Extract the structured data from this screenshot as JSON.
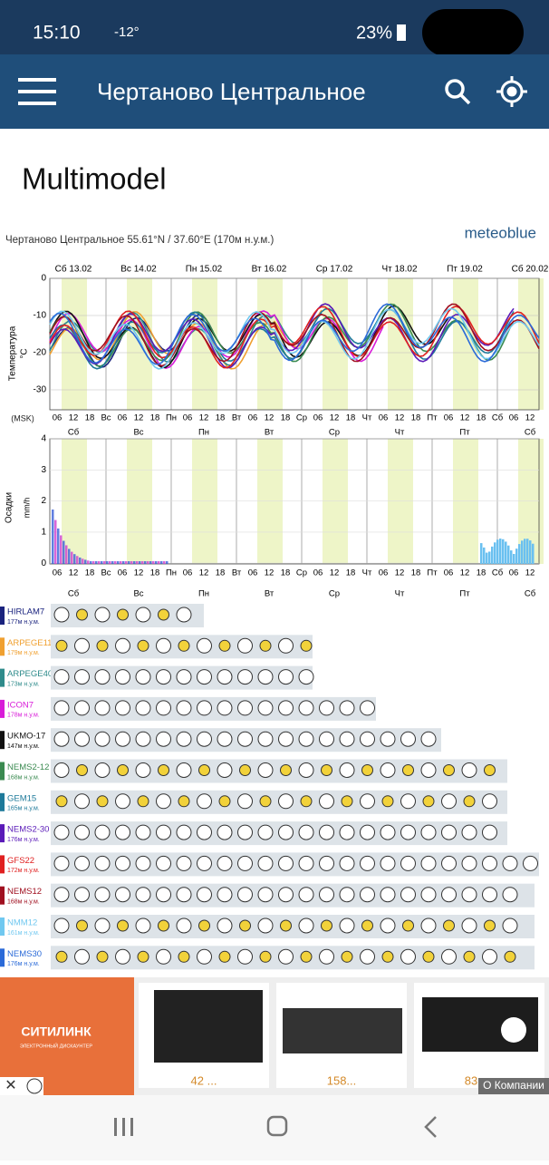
{
  "status_bar": {
    "time": "15:10",
    "temperature": "-12°",
    "battery": "23%"
  },
  "app_bar": {
    "title": "Чертаново Центральное"
  },
  "heading": "Multimodel",
  "meteogram": {
    "location": "Чертаново Центральное  55.61°N / 37.60°E (170м н.у.м.)",
    "brand": "meteoblue",
    "dates": [
      "Сб 13.02",
      "Вс 14.02",
      "Пн 15.02",
      "Вт 16.02",
      "Ср 17.02",
      "Чт 18.02",
      "Пт 19.02",
      "Сб 20.02"
    ],
    "temp_axis_label": "Температура",
    "temp_unit": "°C",
    "temp_ticks": [
      "0",
      "-10",
      "-20",
      "-30"
    ],
    "timezone": "(MSK)",
    "hour_labels": [
      "06",
      "12",
      "18",
      "Вс",
      "06",
      "12",
      "18",
      "Пн",
      "06",
      "12",
      "18",
      "Вт",
      "06",
      "12",
      "18",
      "Ср",
      "06",
      "12",
      "18",
      "Чт",
      "06",
      "12",
      "18",
      "Пт",
      "06",
      "12",
      "18",
      "Сб",
      "06",
      "12"
    ],
    "days": [
      "Сб",
      "Вс",
      "Пн",
      "Вт",
      "Ср",
      "Чт",
      "Пт",
      "Сб"
    ],
    "precip_axis_label": "Осадки",
    "precip_unit": "mm/h",
    "precip_ticks": [
      "4",
      "3",
      "2",
      "1",
      "0"
    ],
    "models": [
      {
        "name": "HIRLAM7",
        "elevation": "177м н.у.м.",
        "color": "#1a237e"
      },
      {
        "name": "ARPEGE11",
        "elevation": "179м н.у.м.",
        "color": "#f0a030"
      },
      {
        "name": "ARPEGE40",
        "elevation": "173м н.у.м.",
        "color": "#2e8b8b"
      },
      {
        "name": "ICON7",
        "elevation": "178м н.у.м.",
        "color": "#d81bd8"
      },
      {
        "name": "UKMO-17",
        "elevation": "147м н.у.м.",
        "color": "#111111"
      },
      {
        "name": "NEMS2-12",
        "elevation": "168м н.у.м.",
        "color": "#3a8a50"
      },
      {
        "name": "GEM15",
        "elevation": "165м н.у.м.",
        "color": "#1e7a9a"
      },
      {
        "name": "NEMS2-30",
        "elevation": "176м н.у.м.",
        "color": "#5a1ab8"
      },
      {
        "name": "GFS22",
        "elevation": "172м н.у.м.",
        "color": "#e02020"
      },
      {
        "name": "NEMS12",
        "elevation": "168м н.у.м.",
        "color": "#a01020"
      },
      {
        "name": "NMM12",
        "elevation": "161м н.у.м.",
        "color": "#70c8f0"
      },
      {
        "name": "NEMS30",
        "elevation": "176м н.у.м.",
        "color": "#2a6ad8"
      }
    ]
  },
  "ad": {
    "brand": "СИТИЛИНК",
    "tagline": "ЭЛЕКТРОННЫЙ ДИСКАУНТЕР",
    "prices": [
      "42 ...",
      "158...",
      "83"
    ],
    "about": "О Компании"
  }
}
